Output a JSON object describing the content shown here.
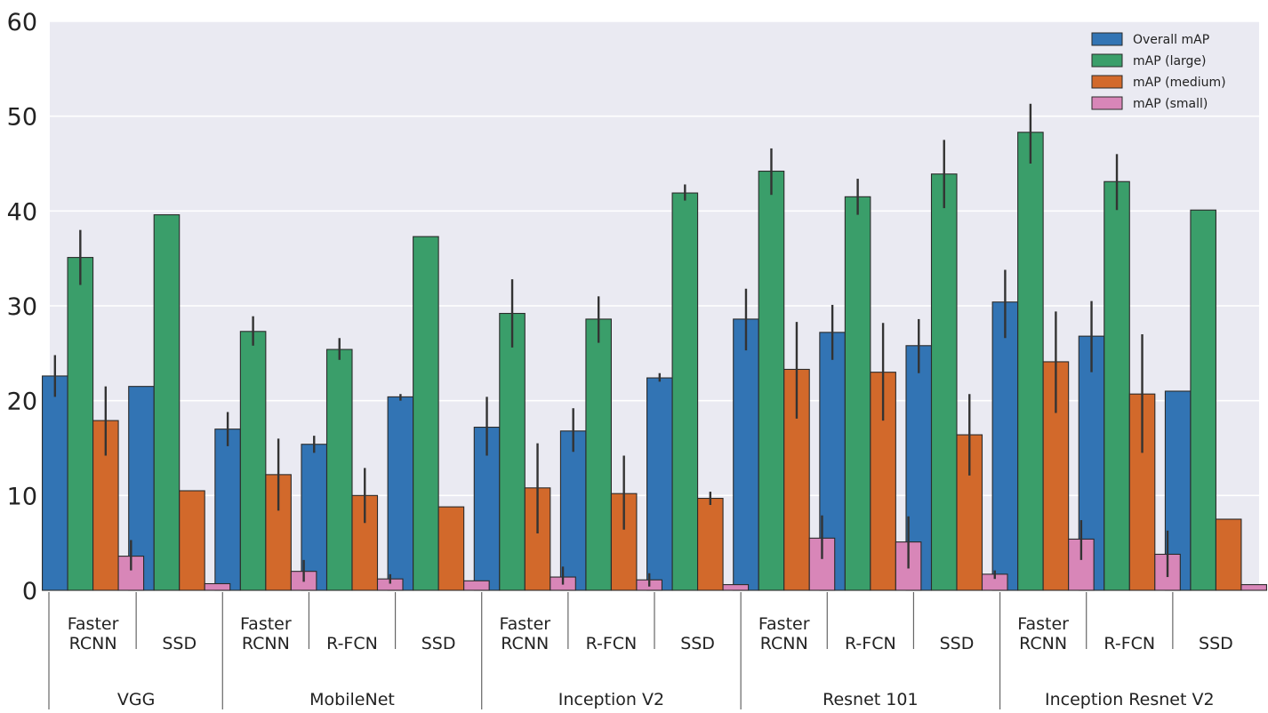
{
  "chart_data": {
    "type": "bar",
    "title": "",
    "xlabel": "",
    "ylabel": "",
    "ylim": [
      0,
      60
    ],
    "yticks": [
      "0",
      "10",
      "20",
      "30",
      "40",
      "50",
      "60"
    ],
    "grid": true,
    "legend_position": "top-right",
    "groups": [
      {
        "label": "VGG",
        "categories": [
          [
            "Faster",
            "RCNN"
          ],
          [
            "SSD"
          ]
        ]
      },
      {
        "label": "MobileNet",
        "categories": [
          [
            "Faster",
            "RCNN"
          ],
          [
            "R-FCN"
          ],
          [
            "SSD"
          ]
        ]
      },
      {
        "label": "Inception V2",
        "categories": [
          [
            "Faster",
            "RCNN"
          ],
          [
            "R-FCN"
          ],
          [
            "SSD"
          ]
        ]
      },
      {
        "label": "Resnet 101",
        "categories": [
          [
            "Faster",
            "RCNN"
          ],
          [
            "R-FCN"
          ],
          [
            "SSD"
          ]
        ]
      },
      {
        "label": "Inception Resnet V2",
        "categories": [
          [
            "Faster",
            "RCNN"
          ],
          [
            "R-FCN"
          ],
          [
            "SSD"
          ]
        ]
      }
    ],
    "series": [
      {
        "name": "Overall mAP",
        "color": "#3274b4",
        "values": [
          22.6,
          21.5,
          17.0,
          15.4,
          20.4,
          17.2,
          16.8,
          22.4,
          28.6,
          27.2,
          25.8,
          30.4,
          26.8,
          21.0
        ],
        "errors": [
          [
            20.4,
            24.8
          ],
          null,
          [
            15.2,
            18.8
          ],
          [
            14.5,
            16.3
          ],
          [
            20.0,
            20.7
          ],
          [
            14.2,
            20.4
          ],
          [
            14.6,
            19.2
          ],
          [
            22.0,
            22.9
          ],
          [
            25.3,
            31.8
          ],
          [
            24.3,
            30.1
          ],
          [
            22.9,
            28.6
          ],
          [
            26.6,
            33.8
          ],
          [
            23.0,
            30.5
          ],
          null
        ]
      },
      {
        "name": "mAP (large)",
        "color": "#3a9e6a",
        "values": [
          35.1,
          39.6,
          27.3,
          25.4,
          37.3,
          29.2,
          28.6,
          41.9,
          44.2,
          41.5,
          43.9,
          48.3,
          43.1,
          40.1
        ],
        "errors": [
          [
            32.2,
            38.0
          ],
          null,
          [
            25.8,
            28.9
          ],
          [
            24.3,
            26.6
          ],
          null,
          [
            25.6,
            32.8
          ],
          [
            26.1,
            31.0
          ],
          [
            41.1,
            42.8
          ],
          [
            41.7,
            46.6
          ],
          [
            39.6,
            43.4
          ],
          [
            40.3,
            47.5
          ],
          [
            45.0,
            51.3
          ],
          [
            40.1,
            46.0
          ],
          null
        ]
      },
      {
        "name": "mAP (medium)",
        "color": "#d2692b",
        "values": [
          17.9,
          10.5,
          12.2,
          10.0,
          8.8,
          10.8,
          10.2,
          9.7,
          23.3,
          23.0,
          16.4,
          24.1,
          20.7,
          7.5
        ],
        "errors": [
          [
            14.2,
            21.5
          ],
          null,
          [
            8.4,
            16.0
          ],
          [
            7.1,
            12.9
          ],
          null,
          [
            6.0,
            15.5
          ],
          [
            6.4,
            14.2
          ],
          [
            9.0,
            10.4
          ],
          [
            18.1,
            28.3
          ],
          [
            17.9,
            28.2
          ],
          [
            12.1,
            20.7
          ],
          [
            18.7,
            29.4
          ],
          [
            14.5,
            27.0
          ],
          null
        ]
      },
      {
        "name": "mAP (small)",
        "color": "#d886b8",
        "values": [
          3.6,
          0.7,
          2.0,
          1.2,
          1.0,
          1.4,
          1.1,
          0.6,
          5.5,
          5.1,
          1.7,
          5.4,
          3.8,
          0.6
        ],
        "errors": [
          [
            2.1,
            5.3
          ],
          null,
          [
            0.9,
            3.2
          ],
          [
            0.7,
            1.7
          ],
          null,
          [
            0.6,
            2.5
          ],
          [
            0.4,
            1.8
          ],
          null,
          [
            3.3,
            7.9
          ],
          [
            2.3,
            7.8
          ],
          [
            1.2,
            2.1
          ],
          [
            3.2,
            7.4
          ],
          [
            1.4,
            6.3
          ],
          null
        ]
      }
    ]
  }
}
